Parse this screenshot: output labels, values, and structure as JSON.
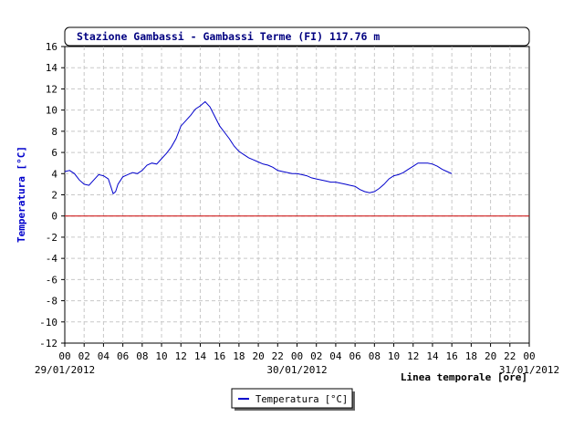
{
  "chart_data": {
    "type": "line",
    "title": "Stazione Gambassi - Gambassi Terme (FI) 117.76 m",
    "ylabel": "Temperatura [°C]",
    "xlabel": "Linea temporale [ore]",
    "ylim": [
      -12,
      16
    ],
    "yticks": [
      16,
      14,
      12,
      10,
      8,
      6,
      4,
      2,
      0,
      -2,
      -4,
      -6,
      -8,
      -10,
      -12
    ],
    "xlim_hours": [
      0,
      48
    ],
    "xticks": [
      "00",
      "02",
      "04",
      "06",
      "08",
      "10",
      "12",
      "14",
      "16",
      "18",
      "20",
      "22",
      "00",
      "02",
      "04",
      "06",
      "08",
      "10",
      "12",
      "14",
      "16",
      "18",
      "20",
      "22",
      "00"
    ],
    "date_labels": [
      {
        "hour": 0,
        "label": "29/01/2012"
      },
      {
        "hour": 24,
        "label": "30/01/2012"
      },
      {
        "hour": 48,
        "label": "31/01/2012"
      }
    ],
    "grid": true,
    "legend_position": "bottom-center",
    "reference_line": {
      "y": 0,
      "color": "#cc0000"
    },
    "colors": {
      "series": "#0000cc",
      "title_text": "#000080",
      "ylabel_text": "#0000cc"
    },
    "series": [
      {
        "name": "Temperatura [°C]",
        "points": [
          [
            0,
            4.2
          ],
          [
            0.5,
            4.3
          ],
          [
            1,
            4.0
          ],
          [
            1.5,
            3.4
          ],
          [
            2,
            3.0
          ],
          [
            2.5,
            2.9
          ],
          [
            3,
            3.4
          ],
          [
            3.5,
            3.9
          ],
          [
            4,
            3.8
          ],
          [
            4.5,
            3.5
          ],
          [
            4.75,
            2.8
          ],
          [
            5,
            2.1
          ],
          [
            5.25,
            2.3
          ],
          [
            5.5,
            3.0
          ],
          [
            6,
            3.7
          ],
          [
            6.5,
            3.9
          ],
          [
            7,
            4.1
          ],
          [
            7.5,
            4.0
          ],
          [
            8,
            4.3
          ],
          [
            8.5,
            4.8
          ],
          [
            9,
            5.0
          ],
          [
            9.5,
            4.9
          ],
          [
            10,
            5.4
          ],
          [
            10.5,
            5.9
          ],
          [
            11,
            6.5
          ],
          [
            11.5,
            7.3
          ],
          [
            12,
            8.5
          ],
          [
            12.5,
            9.0
          ],
          [
            13,
            9.5
          ],
          [
            13.5,
            10.1
          ],
          [
            14,
            10.4
          ],
          [
            14.5,
            10.8
          ],
          [
            15,
            10.3
          ],
          [
            15.5,
            9.4
          ],
          [
            16,
            8.5
          ],
          [
            16.5,
            7.9
          ],
          [
            17,
            7.3
          ],
          [
            17.5,
            6.6
          ],
          [
            18,
            6.1
          ],
          [
            18.5,
            5.8
          ],
          [
            19,
            5.5
          ],
          [
            19.5,
            5.3
          ],
          [
            20,
            5.1
          ],
          [
            20.5,
            4.9
          ],
          [
            21,
            4.8
          ],
          [
            21.5,
            4.6
          ],
          [
            22,
            4.3
          ],
          [
            22.5,
            4.2
          ],
          [
            23,
            4.1
          ],
          [
            23.5,
            4.0
          ],
          [
            24,
            4.0
          ],
          [
            24.5,
            3.9
          ],
          [
            25,
            3.8
          ],
          [
            25.5,
            3.6
          ],
          [
            26,
            3.5
          ],
          [
            26.5,
            3.4
          ],
          [
            27,
            3.3
          ],
          [
            27.5,
            3.2
          ],
          [
            28,
            3.2
          ],
          [
            28.5,
            3.1
          ],
          [
            29,
            3.0
          ],
          [
            29.5,
            2.9
          ],
          [
            30,
            2.8
          ],
          [
            30.5,
            2.5
          ],
          [
            31,
            2.3
          ],
          [
            31.5,
            2.2
          ],
          [
            32,
            2.3
          ],
          [
            32.5,
            2.6
          ],
          [
            33,
            3.0
          ],
          [
            33.5,
            3.5
          ],
          [
            34,
            3.8
          ],
          [
            34.5,
            3.9
          ],
          [
            35,
            4.1
          ],
          [
            35.5,
            4.4
          ],
          [
            36,
            4.7
          ],
          [
            36.5,
            5.0
          ],
          [
            37,
            5.0
          ],
          [
            37.5,
            5.0
          ],
          [
            38,
            4.9
          ],
          [
            38.5,
            4.7
          ],
          [
            39,
            4.4
          ],
          [
            39.5,
            4.2
          ],
          [
            40,
            4.0
          ]
        ]
      }
    ]
  }
}
